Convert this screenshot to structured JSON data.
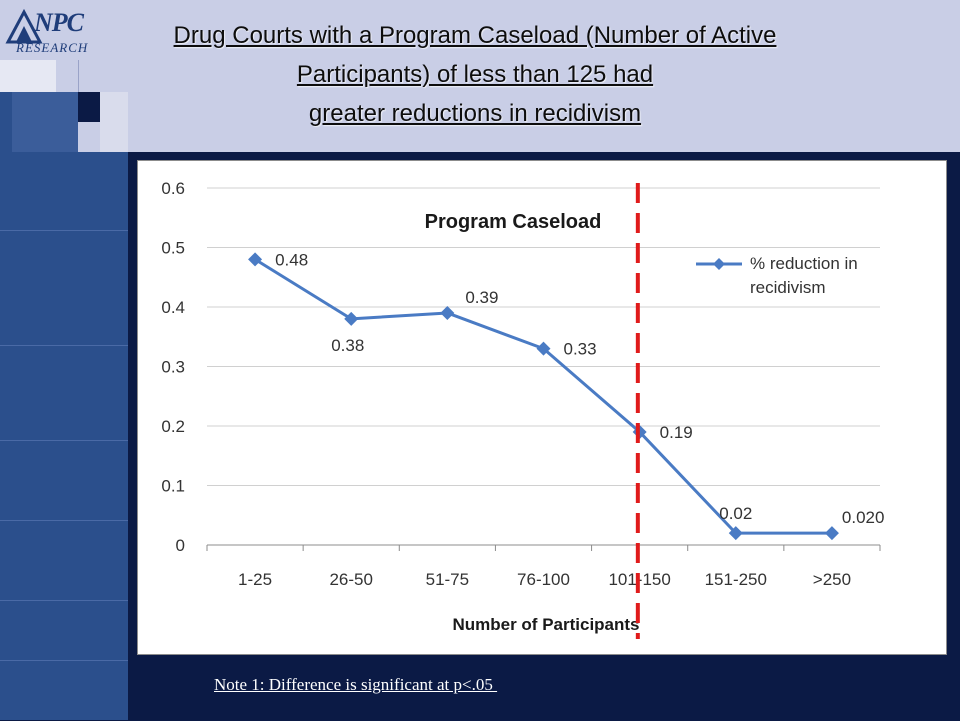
{
  "logo": {
    "mark": "NPC",
    "word": "RESEARCH"
  },
  "title_lines": [
    "Drug Courts with a Program Caseload (Number of Active",
    "Participants) of less than 125 had",
    "greater reductions in recidivism"
  ],
  "note": "Note 1: Difference is significant at p<.05 ",
  "colors": {
    "series": "#4a7bc4",
    "threshold_line": "#e01b1b",
    "background": "#0b1a45",
    "header": "#c9cee6"
  },
  "chart_data": {
    "type": "line",
    "title": "Program Caseload",
    "xlabel": "Number of Participants",
    "ylabel": "",
    "categories": [
      "1-25",
      "26-50",
      "51-75",
      "76-100",
      "101-150",
      "151-250",
      ">250"
    ],
    "series": [
      {
        "name": "% reduction in recidivism",
        "values": [
          0.48,
          0.38,
          0.39,
          0.33,
          0.19,
          0.02,
          0.02
        ],
        "data_labels": [
          "0.48",
          "0.38",
          "0.39",
          "0.33",
          "0.19",
          "0.02",
          "0.020"
        ]
      }
    ],
    "ylim": [
      0,
      0.6
    ],
    "yticks": [
      "0",
      "0.1",
      "0.2",
      "0.3",
      "0.4",
      "0.5",
      "0.6"
    ],
    "grid": "horizontal",
    "legend": "top-right",
    "threshold_marker": {
      "style": "dashed vertical line",
      "between": [
        "76-100",
        "101-150"
      ]
    }
  }
}
